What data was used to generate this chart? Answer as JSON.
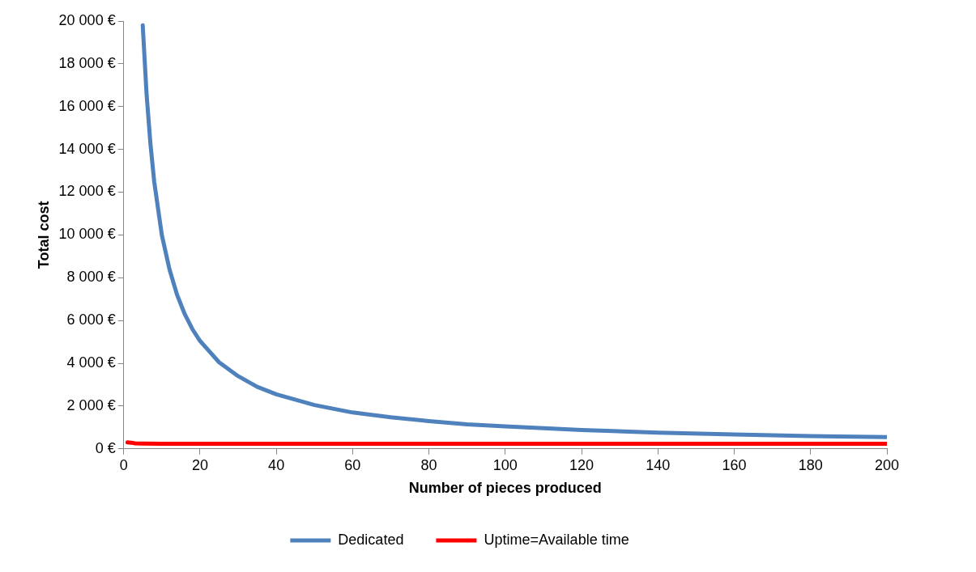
{
  "chart_data": {
    "type": "line",
    "xlabel": "Number of pieces produced",
    "ylabel": "Total cost",
    "xlim": [
      0,
      200
    ],
    "xticks": [
      0,
      20,
      40,
      60,
      80,
      100,
      120,
      140,
      160,
      180,
      200
    ],
    "ylim": [
      0,
      20000
    ],
    "yticks": [
      {
        "value": 0,
        "label": "0 €"
      },
      {
        "value": 2000,
        "label": "2 000 €"
      },
      {
        "value": 4000,
        "label": "4 000 €"
      },
      {
        "value": 6000,
        "label": "6 000 €"
      },
      {
        "value": 8000,
        "label": "8 000 €"
      },
      {
        "value": 10000,
        "label": "10 000 €"
      },
      {
        "value": 12000,
        "label": "12 000 €"
      },
      {
        "value": 14000,
        "label": "14 000 €"
      },
      {
        "value": 16000,
        "label": "16 000 €"
      },
      {
        "value": 18000,
        "label": "18 000 €"
      },
      {
        "value": 20000,
        "label": "20 000 €"
      }
    ],
    "grid": false,
    "legend": "bottom",
    "marker": "none",
    "line_style": "solid",
    "series": [
      {
        "name": "Dedicated",
        "color": "#4f81bd",
        "x": [
          5,
          6,
          7,
          8,
          10,
          12,
          14,
          16,
          18,
          20,
          25,
          30,
          35,
          40,
          50,
          60,
          70,
          80,
          90,
          100,
          120,
          140,
          160,
          180,
          200
        ],
        "values": [
          19800,
          16600,
          14300,
          12500,
          10000,
          8400,
          7200,
          6300,
          5600,
          5050,
          4050,
          3400,
          2900,
          2550,
          2050,
          1700,
          1480,
          1300,
          1150,
          1050,
          880,
          760,
          670,
          600,
          550
        ]
      },
      {
        "name": "Uptime=Available time",
        "color": "#ff0000",
        "x": [
          1,
          2,
          3,
          5,
          10,
          20,
          50,
          100,
          200
        ],
        "values": [
          300,
          290,
          260,
          250,
          240,
          240,
          240,
          240,
          240
        ]
      }
    ]
  }
}
